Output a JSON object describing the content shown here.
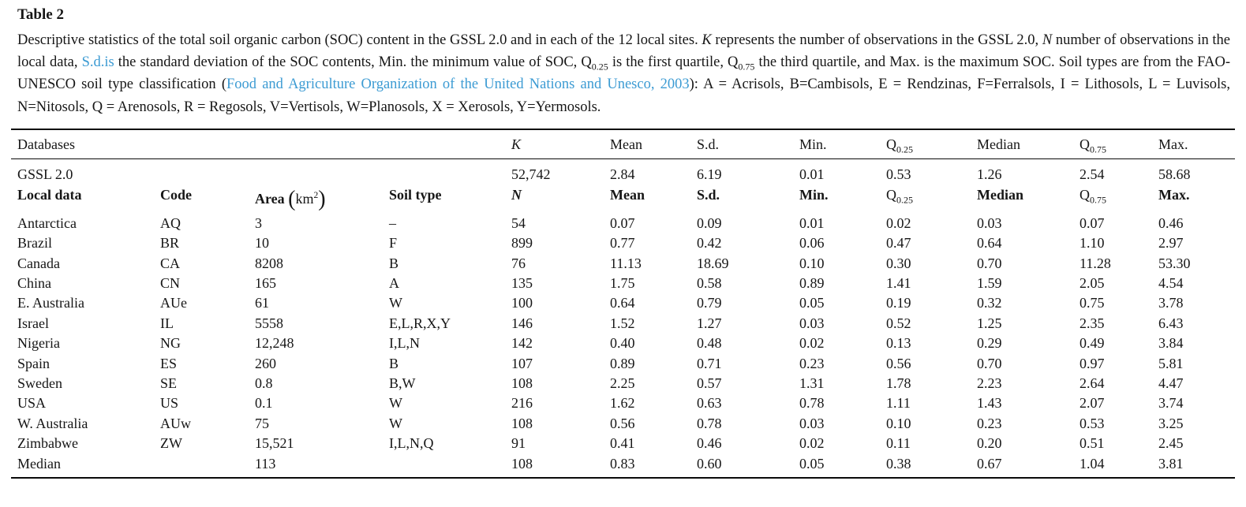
{
  "colors": {
    "link": "#3c9bd3",
    "text": "#161616",
    "background": "#ffffff"
  },
  "title": "Table 2",
  "caption": {
    "segments": [
      {
        "text": "Descriptive statistics of the total soil organic carbon (SOC) content in the GSSL 2.0 and in each of the 12 local sites. "
      },
      {
        "text": "K"
      },
      {
        "text": " represents the number of observations in the GSSL 2.0, "
      },
      {
        "text": "N"
      },
      {
        "text": " number of observations in the local data, "
      },
      {
        "text": "S.d.is"
      },
      {
        "text": " the standard deviation of the SOC contents, Min. the minimum value of SOC, Q"
      },
      {
        "text": "0.25"
      },
      {
        "text": " is the first quartile, Q"
      },
      {
        "text": "0.75"
      },
      {
        "text": " the third quartile, and Max. is the maximum SOC. Soil types are from the FAO-UNESCO soil type classification ("
      },
      {
        "text": "Food and Agriculture Organization of the United Nations and Unesco, 2003"
      },
      {
        "text": "): A = Acrisols, B=Cambisols, E = Rendzinas, F=Ferralsols, I = Lithosols, L = Luvisols, N=Nitosols, Q = Arenosols, R = Regosols, V=Vertisols, W=Planosols, X = Xerosols, Y=Yermosols."
      }
    ]
  },
  "table": {
    "top_header": {
      "label": "Databases",
      "k": "K",
      "mean": "Mean",
      "sd": "S.d.",
      "min": "Min.",
      "q25": {
        "base": "Q",
        "sub": "0.25"
      },
      "median": "Median",
      "q75": {
        "base": "Q",
        "sub": "0.75"
      },
      "max": "Max."
    },
    "gssl_row": {
      "label": "GSSL 2.0",
      "values": [
        "52,742",
        "2.84",
        "6.19",
        "0.01",
        "0.53",
        "1.26",
        "2.54",
        "58.68"
      ]
    },
    "local_header": {
      "label": "Local data",
      "code": "Code",
      "area": {
        "word": "Area",
        "open": "(",
        "unit": "km",
        "sup": "2",
        "close": ")"
      },
      "soil": "Soil type",
      "n": "N",
      "mean": "Mean",
      "sd": "S.d.",
      "min": "Min.",
      "q25": {
        "base": "Q",
        "sub": "0.25"
      },
      "median": "Median",
      "q75": {
        "base": "Q",
        "sub": "0.75"
      },
      "max": "Max."
    },
    "rows": [
      [
        "Antarctica",
        "AQ",
        "3",
        "–",
        "54",
        "0.07",
        "0.09",
        "0.01",
        "0.02",
        "0.03",
        "0.07",
        "0.46"
      ],
      [
        "Brazil",
        "BR",
        "10",
        "F",
        "899",
        "0.77",
        "0.42",
        "0.06",
        "0.47",
        "0.64",
        "1.10",
        "2.97"
      ],
      [
        "Canada",
        "CA",
        "8208",
        "B",
        "76",
        "11.13",
        "18.69",
        "0.10",
        "0.30",
        "0.70",
        "11.28",
        "53.30"
      ],
      [
        "China",
        "CN",
        "165",
        "A",
        "135",
        "1.75",
        "0.58",
        "0.89",
        "1.41",
        "1.59",
        "2.05",
        "4.54"
      ],
      [
        "E. Australia",
        "AUe",
        "61",
        "W",
        "100",
        "0.64",
        "0.79",
        "0.05",
        "0.19",
        "0.32",
        "0.75",
        "3.78"
      ],
      [
        "Israel",
        "IL",
        "5558",
        "E,L,R,X,Y",
        "146",
        "1.52",
        "1.27",
        "0.03",
        "0.52",
        "1.25",
        "2.35",
        "6.43"
      ],
      [
        "Nigeria",
        "NG",
        "12,248",
        "I,L,N",
        "142",
        "0.40",
        "0.48",
        "0.02",
        "0.13",
        "0.29",
        "0.49",
        "3.84"
      ],
      [
        "Spain",
        "ES",
        "260",
        "B",
        "107",
        "0.89",
        "0.71",
        "0.23",
        "0.56",
        "0.70",
        "0.97",
        "5.81"
      ],
      [
        "Sweden",
        "SE",
        "0.8",
        "B,W",
        "108",
        "2.25",
        "0.57",
        "1.31",
        "1.78",
        "2.23",
        "2.64",
        "4.47"
      ],
      [
        "USA",
        "US",
        "0.1",
        "W",
        "216",
        "1.62",
        "0.63",
        "0.78",
        "1.11",
        "1.43",
        "2.07",
        "3.74"
      ],
      [
        "W. Australia",
        "AUw",
        "75",
        "W",
        "108",
        "0.56",
        "0.78",
        "0.03",
        "0.10",
        "0.23",
        "0.53",
        "3.25"
      ],
      [
        "Zimbabwe",
        "ZW",
        "15,521",
        "I,L,N,Q",
        "91",
        "0.41",
        "0.46",
        "0.02",
        "0.11",
        "0.20",
        "0.51",
        "2.45"
      ],
      [
        "Median",
        "",
        "113",
        "",
        "108",
        "0.83",
        "0.60",
        "0.05",
        "0.38",
        "0.67",
        "1.04",
        "3.81"
      ]
    ]
  }
}
